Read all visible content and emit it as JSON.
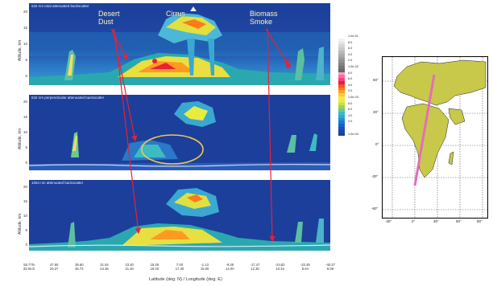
{
  "panels": [
    {
      "title": "532 nm total attenuated backscatter",
      "ylabel": "Altitude, km",
      "yticks": [
        "20",
        "15",
        "10",
        "5",
        "0"
      ]
    },
    {
      "title": "532 nm perpendicular attenuated backscatter",
      "ylabel": "Altitude, km",
      "yticks": [
        "20",
        "15",
        "10",
        "5",
        "0"
      ]
    },
    {
      "title": "1064 nm attenuated backscatter",
      "ylabel": "Altitude, km",
      "yticks": [
        "20",
        "15",
        "10",
        "5",
        "0"
      ]
    }
  ],
  "callouts": {
    "dust_line1": "Desert",
    "dust_line2": "Dust",
    "cirrus": "Cirrus",
    "smoke_line1": "Biomass",
    "smoke_line2": "Smoke"
  },
  "xaxis": {
    "label": "Latitude (deg. N) / Longitude (deg. E)",
    "ticks": [
      {
        "lat": "55.77N",
        "lon": "33.94 E"
      },
      {
        "lat": "47.60",
        "lon": "29.27"
      },
      {
        "lat": "39.60",
        "lon": "26.72"
      },
      {
        "lat": "31.54",
        "lon": "24.46"
      },
      {
        "lat": "23.40",
        "lon": "21.40"
      },
      {
        "lat": "15.26",
        "lon": "19.40"
      },
      {
        "lat": "7.00",
        "lon": "17.30"
      },
      {
        "lat": "-1.13",
        "lon": "15.00"
      },
      {
        "lat": "-9.36",
        "lon": "14.00"
      },
      {
        "lat": "-17.47",
        "lon": "12.30"
      },
      {
        "lat": "-24.82",
        "lon": "10.44"
      },
      {
        "lat": "-32.49",
        "lon": "8.64"
      },
      {
        "lat": "-40.27",
        "lon": "6.08"
      }
    ]
  },
  "colorbar": {
    "colors": [
      "#ffffff",
      "#f2f2f2",
      "#e4e4e4",
      "#d6d6d6",
      "#c8c8c8",
      "#bababa",
      "#acacac",
      "#9e9e9e",
      "#909090",
      "#828282",
      "#747474",
      "#666666",
      "#ff9ec4",
      "#ff6aa4",
      "#ff3a80",
      "#e8203a",
      "#ff5020",
      "#ff7a1a",
      "#ffa020",
      "#ffc830",
      "#ffe640",
      "#e8ec40",
      "#c8e040",
      "#a0d448",
      "#6cc890",
      "#3cbcc0",
      "#2aa8d8",
      "#2090d8",
      "#1c78d0",
      "#1a60c8",
      "#1c50b8",
      "#1c46a8",
      "#1c3f9b"
    ],
    "labels": [
      {
        "t": "1.0e-01",
        "i": 0
      },
      {
        "t": "8.0",
        "i": 2
      },
      {
        "t": "6.0",
        "i": 4
      },
      {
        "t": "4.0",
        "i": 6
      },
      {
        "t": "2.0",
        "i": 8
      },
      {
        "t": "1.0e-02",
        "i": 10
      },
      {
        "t": "8.0",
        "i": 12
      },
      {
        "t": "6.0",
        "i": 14
      },
      {
        "t": "4.0",
        "i": 16
      },
      {
        "t": "2.0",
        "i": 18
      },
      {
        "t": "1.0e-03",
        "i": 20
      },
      {
        "t": "8.0",
        "i": 22
      },
      {
        "t": "6.0",
        "i": 24
      },
      {
        "t": "4.0",
        "i": 26
      },
      {
        "t": "2.0",
        "i": 28
      },
      {
        "t": "1.0e-04",
        "i": 32
      }
    ]
  },
  "map": {
    "lat_labels": [
      "60°",
      "30°",
      "0°",
      "-30°",
      "-60°"
    ],
    "lon_labels": [
      "-30°",
      "0°",
      "30°",
      "60°",
      "90°"
    ],
    "land_color": "#c8c84a",
    "track_color": "#e070b8"
  }
}
